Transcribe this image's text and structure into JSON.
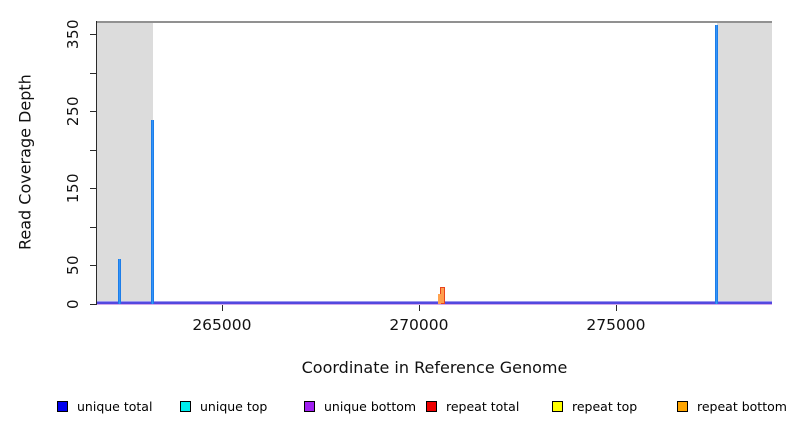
{
  "chart_data": {
    "type": "line",
    "title": "",
    "xlabel": "Coordinate in Reference Genome",
    "ylabel": "Read Coverage Depth",
    "xlim": [
      261830,
      278960
    ],
    "ylim": [
      0,
      367
    ],
    "grid": false,
    "legend_position": "bottom",
    "frame_color": "#919191",
    "region_color": "#DCDCDC",
    "baseline_colors": {
      "top": "#9B97EF",
      "core": "#5348DF",
      "halo": "#D2A9EA"
    },
    "x_ticks": [
      {
        "value": 265000,
        "label": "265000"
      },
      {
        "value": 270000,
        "label": "270000"
      },
      {
        "value": 275000,
        "label": "275000"
      }
    ],
    "y_ticks": [
      {
        "value": 0,
        "label": "0"
      },
      {
        "value": 50,
        "label": "50"
      },
      {
        "value": 100,
        "label": ""
      },
      {
        "value": 150,
        "label": "150"
      },
      {
        "value": 200,
        "label": ""
      },
      {
        "value": 250,
        "label": "250"
      },
      {
        "value": 300,
        "label": ""
      },
      {
        "value": 350,
        "label": "350"
      }
    ],
    "shaded_regions": [
      {
        "x0": 261830,
        "x1": 263240
      },
      {
        "x0": 277560,
        "x1": 278960
      }
    ],
    "series": [
      {
        "name": "unique total",
        "color": "#0000EE",
        "draw_color": "#1E86F0",
        "points": [
          {
            "x": 262400,
            "depth": 58
          },
          {
            "x": 263240,
            "depth": 238
          },
          {
            "x": 277560,
            "depth": 362
          }
        ]
      },
      {
        "name": "unique top",
        "color": "#00EEEE",
        "points": []
      },
      {
        "name": "unique bottom",
        "color": "#A020F0",
        "draw_color": "#5348DF",
        "baseline_depth": 0,
        "points": []
      },
      {
        "name": "repeat total",
        "color": "#EE0000",
        "draw_color": "#E8431C",
        "points": [
          {
            "x": 270610,
            "depth": 22
          }
        ]
      },
      {
        "name": "repeat top",
        "color": "#FFFF00",
        "points": []
      },
      {
        "name": "repeat bottom",
        "color": "#FFA500",
        "draw_color": "#FFA24E",
        "points": [
          {
            "x": 270510,
            "depth": 13
          }
        ]
      }
    ],
    "legend": [
      {
        "label": "unique total",
        "color": "#0000EE"
      },
      {
        "label": "unique top",
        "color": "#00EEEE"
      },
      {
        "label": "unique bottom",
        "color": "#A020F0"
      },
      {
        "label": "repeat total",
        "color": "#EE0000"
      },
      {
        "label": "repeat top",
        "color": "#FFFF00"
      },
      {
        "label": "repeat bottom",
        "color": "#FFA500"
      }
    ]
  }
}
